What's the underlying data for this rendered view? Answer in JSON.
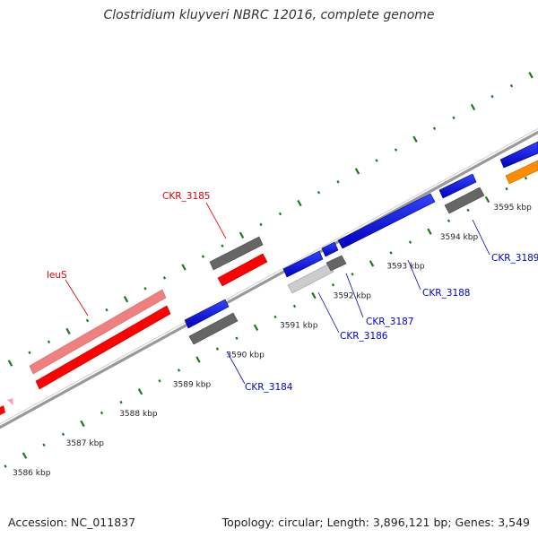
{
  "title": "Clostridium kluyveri NBRC 12016, complete genome",
  "footer": {
    "accession": "Accession: NC_011837",
    "topology": "Topology: circular; Length: 3,896,121 bp; Genes: 3,549"
  },
  "colors": {
    "backbone": "#8c8c8c",
    "tick": "#1a7a1a",
    "red_gene": "#ff0000",
    "pink_gene": "#f08080",
    "blue_gene": "#0000ee",
    "dark_gray_gene": "#666666",
    "light_gray_gene": "#cccccc",
    "orange_gene": "#ff8c00",
    "red_label": "#dd0000",
    "blue_label": "#0000cc"
  },
  "scale": {
    "unit": "kbp",
    "labels": [
      "3586 kbp",
      "3587 kbp",
      "3588 kbp",
      "3589 kbp",
      "3590 kbp",
      "3591 kbp",
      "3592 kbp",
      "3593 kbp",
      "3594 kbp",
      "3595 kbp"
    ]
  },
  "genes": [
    {
      "name": "leuS",
      "color": "red",
      "label_color": "red"
    },
    {
      "name": "CKR_3184",
      "color": "blue",
      "label_color": "blue"
    },
    {
      "name": "CKR_3185",
      "color": "dark-gray",
      "label_color": "red"
    },
    {
      "name": "CKR_3186",
      "color": "light-gray",
      "label_color": "blue"
    },
    {
      "name": "CKR_3187",
      "color": "dark-gray",
      "label_color": "blue"
    },
    {
      "name": "CKR_3188",
      "color": "blue",
      "label_color": "blue"
    },
    {
      "name": "CKR_3189",
      "color": "dark-gray",
      "label_color": "blue"
    }
  ]
}
